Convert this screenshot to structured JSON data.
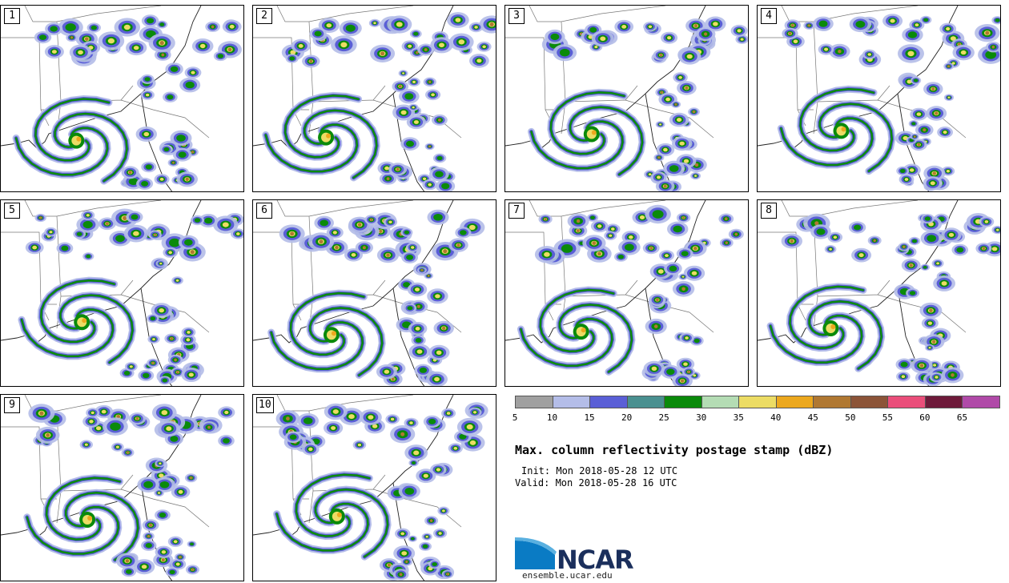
{
  "panels": [
    {
      "label": "1"
    },
    {
      "label": "2"
    },
    {
      "label": "3"
    },
    {
      "label": "4"
    },
    {
      "label": "5"
    },
    {
      "label": "6"
    },
    {
      "label": "7"
    },
    {
      "label": "8"
    },
    {
      "label": "9"
    },
    {
      "label": "10"
    }
  ],
  "colorbar": {
    "ticks": [
      "5",
      "10",
      "15",
      "20",
      "25",
      "30",
      "35",
      "40",
      "45",
      "50",
      "55",
      "60",
      "65"
    ],
    "colors": [
      "#a0a0a0",
      "#b4bde8",
      "#5a5fd6",
      "#4a9090",
      "#0a8a0a",
      "#b4dcb4",
      "#ecdc64",
      "#eca81e",
      "#b07832",
      "#8c5438",
      "#ea4e7a",
      "#6e1a3a",
      "#b04aa8"
    ]
  },
  "title": "Max. column reflectivity postage stamp (dBZ)",
  "init": "Init: Mon 2018-05-28 12 UTC",
  "valid": "Valid: Mon 2018-05-28 16 UTC",
  "logo": {
    "name": "NCAR",
    "site": "ensemble.ucar.edu",
    "color": "#0a7bc4"
  }
}
